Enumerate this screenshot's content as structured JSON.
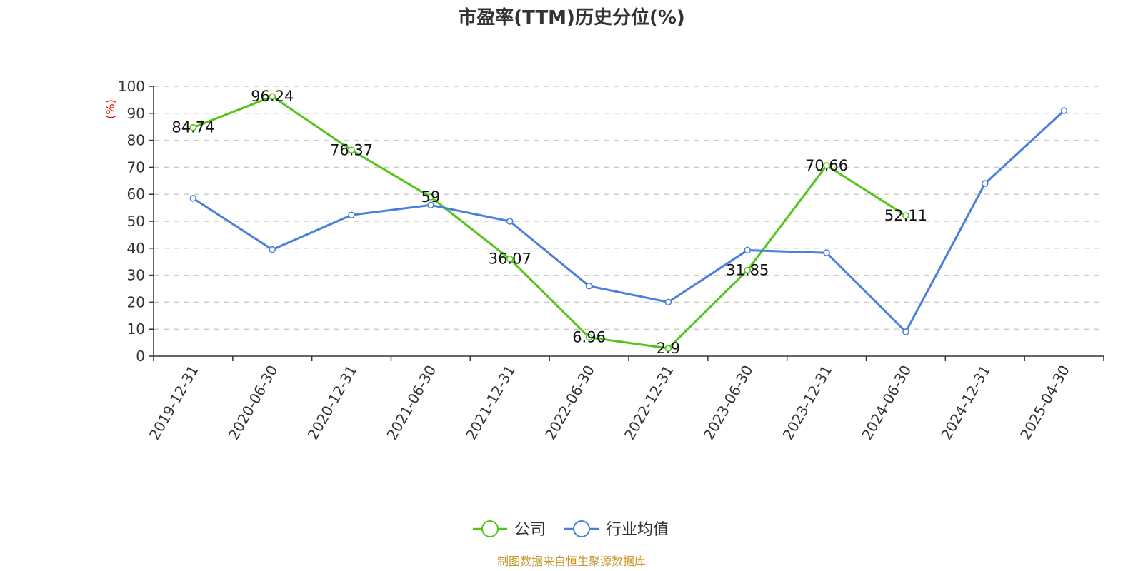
{
  "chart_data": {
    "type": "line",
    "title": "市盈率(TTM)历史分位(%)",
    "ylabel": "(%)",
    "xlabel": "",
    "ylim": [
      0,
      100
    ],
    "yticks": [
      0,
      10,
      20,
      30,
      40,
      50,
      60,
      70,
      80,
      90,
      100
    ],
    "categories": [
      "2019-12-31",
      "2020-06-30",
      "2020-12-31",
      "2021-06-30",
      "2021-12-31",
      "2022-06-30",
      "2022-12-31",
      "2023-06-30",
      "2023-12-31",
      "2024-06-30",
      "2024-12-31",
      "2025-04-30"
    ],
    "series": [
      {
        "name": "公司",
        "color": "#52c41a",
        "values": [
          84.74,
          96.24,
          76.37,
          59,
          36.07,
          6.96,
          2.9,
          31.85,
          70.66,
          52.11,
          null,
          null
        ],
        "show_labels": true
      },
      {
        "name": "行业均值",
        "color": "#4a7fdc",
        "values": [
          58.5,
          39.5,
          52.3,
          56,
          50,
          26,
          20,
          39.3,
          38.3,
          9,
          64,
          91
        ],
        "show_labels": false
      }
    ],
    "grid": true,
    "legend": "bottom-center"
  },
  "source": "制图数据来自恒生聚源数据库"
}
